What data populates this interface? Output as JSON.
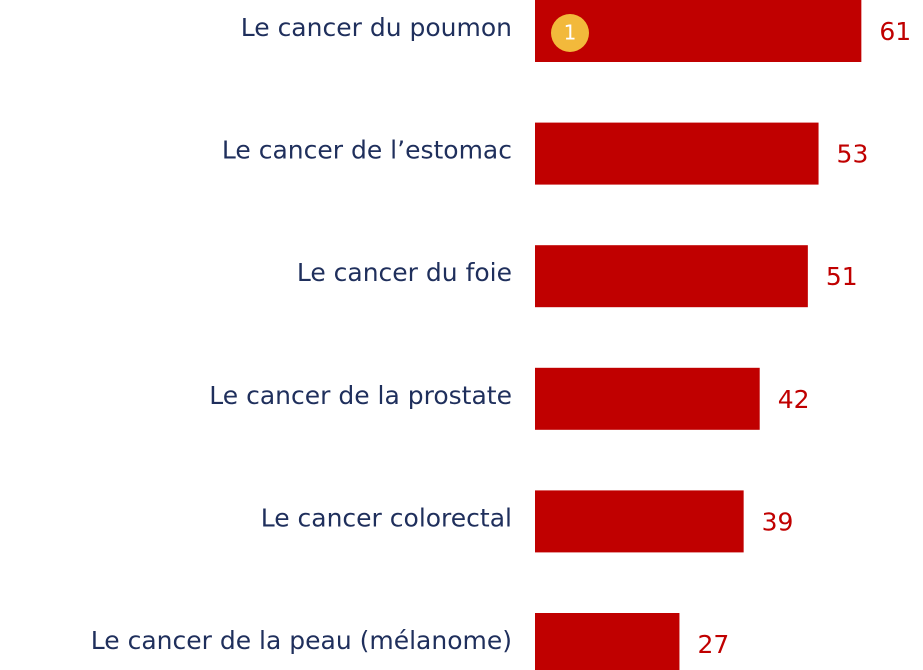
{
  "chart_data": {
    "type": "bar",
    "orientation": "horizontal",
    "categories": [
      "Le cancer du poumon",
      "Le cancer de l’estomac",
      "Le cancer du foie",
      "Le cancer de la prostate",
      "Le cancer colorectal",
      "Le cancer de la peau (mélanome)"
    ],
    "values": [
      61,
      53,
      51,
      42,
      39,
      27
    ],
    "color": "#c00000",
    "badge": "1"
  }
}
